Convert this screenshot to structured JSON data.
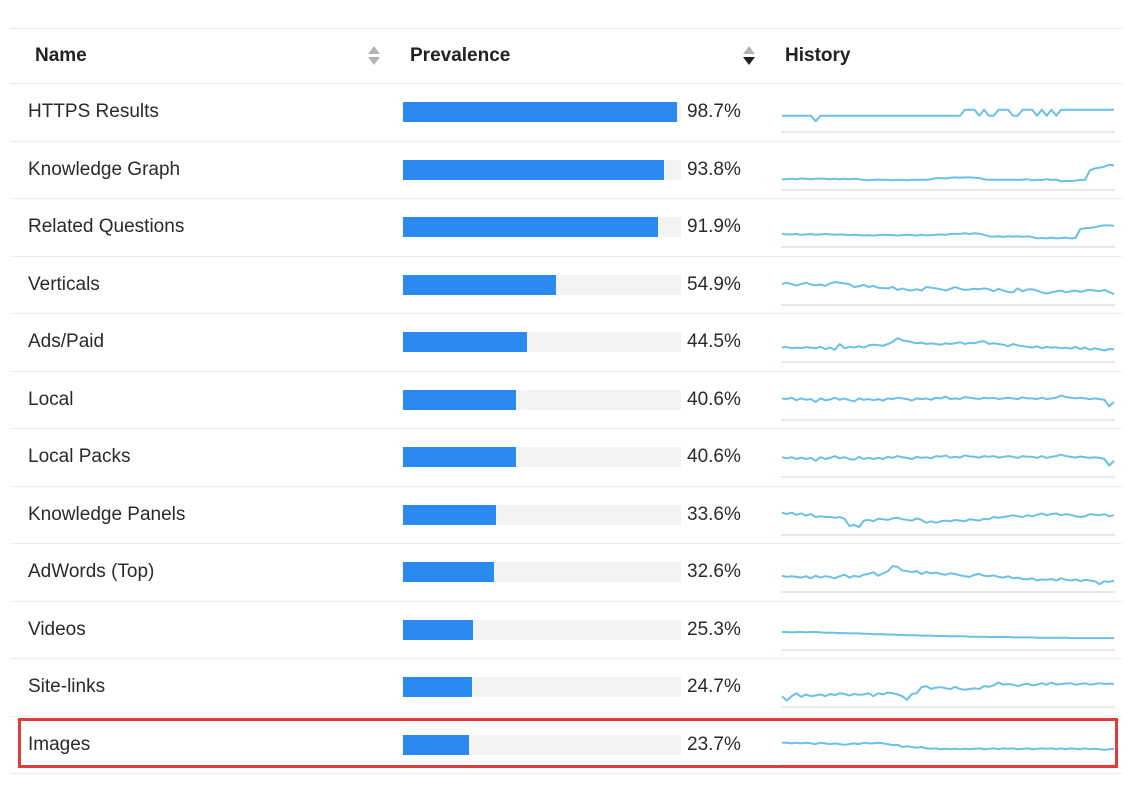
{
  "columns": {
    "name": "Name",
    "prevalence": "Prevalence",
    "history": "History"
  },
  "colors": {
    "bar": "#2a8af0",
    "track": "#f3f3f3",
    "spark": "#6cc0e8",
    "baseline": "#c9d4de",
    "highlight": "#e23b3b"
  },
  "rows": [
    {
      "name": "HTTPS Results",
      "value": 98.7,
      "label": "98.7%",
      "history": [
        0.45,
        0.45,
        0.45,
        0.45,
        0.45,
        0.45,
        0.45,
        0.3,
        0.45,
        0.45,
        0.45,
        0.45,
        0.45,
        0.45,
        0.45,
        0.45,
        0.45,
        0.45,
        0.45,
        0.45,
        0.45,
        0.45,
        0.45,
        0.45,
        0.45,
        0.45,
        0.45,
        0.45,
        0.45,
        0.45,
        0.45,
        0.45,
        0.45,
        0.45,
        0.45,
        0.45,
        0.45,
        0.45,
        0.62,
        0.62,
        0.62,
        0.45,
        0.62,
        0.45,
        0.45,
        0.62,
        0.62,
        0.62,
        0.45,
        0.45,
        0.62,
        0.62,
        0.62,
        0.45,
        0.62,
        0.45,
        0.62,
        0.45,
        0.62,
        0.62,
        0.62,
        0.62,
        0.62,
        0.62,
        0.62,
        0.62,
        0.62,
        0.62,
        0.62,
        0.62
      ]
    },
    {
      "name": "Knowledge Graph",
      "value": 93.8,
      "label": "93.8%",
      "history": [
        0.3,
        0.3,
        0.31,
        0.3,
        0.32,
        0.31,
        0.3,
        0.31,
        0.32,
        0.31,
        0.3,
        0.31,
        0.3,
        0.31,
        0.3,
        0.31,
        0.3,
        0.28,
        0.27,
        0.28,
        0.29,
        0.28,
        0.28,
        0.27,
        0.28,
        0.28,
        0.27,
        0.28,
        0.28,
        0.29,
        0.28,
        0.3,
        0.33,
        0.33,
        0.32,
        0.34,
        0.35,
        0.34,
        0.35,
        0.35,
        0.34,
        0.33,
        0.3,
        0.28,
        0.29,
        0.28,
        0.29,
        0.28,
        0.29,
        0.28,
        0.29,
        0.3,
        0.27,
        0.28,
        0.28,
        0.3,
        0.28,
        0.29,
        0.24,
        0.25,
        0.25,
        0.26,
        0.28,
        0.28,
        0.55,
        0.6,
        0.62,
        0.65,
        0.7,
        0.68
      ]
    },
    {
      "name": "Related Questions",
      "value": 91.9,
      "label": "91.9%",
      "history": [
        0.36,
        0.35,
        0.35,
        0.36,
        0.34,
        0.35,
        0.36,
        0.34,
        0.35,
        0.36,
        0.35,
        0.34,
        0.35,
        0.34,
        0.33,
        0.34,
        0.33,
        0.32,
        0.33,
        0.32,
        0.33,
        0.34,
        0.33,
        0.33,
        0.32,
        0.33,
        0.34,
        0.33,
        0.32,
        0.34,
        0.32,
        0.33,
        0.34,
        0.35,
        0.34,
        0.36,
        0.37,
        0.36,
        0.38,
        0.36,
        0.38,
        0.37,
        0.34,
        0.3,
        0.29,
        0.3,
        0.28,
        0.3,
        0.29,
        0.3,
        0.28,
        0.3,
        0.28,
        0.24,
        0.25,
        0.24,
        0.26,
        0.24,
        0.25,
        0.26,
        0.24,
        0.25,
        0.5,
        0.52,
        0.53,
        0.55,
        0.58,
        0.6,
        0.6,
        0.59
      ]
    },
    {
      "name": "Verticals",
      "value": 54.9,
      "label": "54.9%",
      "history": [
        0.58,
        0.62,
        0.58,
        0.54,
        0.58,
        0.62,
        0.57,
        0.55,
        0.57,
        0.53,
        0.6,
        0.64,
        0.62,
        0.6,
        0.58,
        0.5,
        0.52,
        0.56,
        0.5,
        0.53,
        0.48,
        0.47,
        0.46,
        0.5,
        0.42,
        0.46,
        0.42,
        0.4,
        0.44,
        0.4,
        0.5,
        0.48,
        0.46,
        0.44,
        0.4,
        0.45,
        0.5,
        0.45,
        0.42,
        0.43,
        0.45,
        0.44,
        0.46,
        0.44,
        0.38,
        0.45,
        0.4,
        0.36,
        0.35,
        0.46,
        0.38,
        0.43,
        0.44,
        0.4,
        0.35,
        0.32,
        0.35,
        0.38,
        0.4,
        0.35,
        0.38,
        0.4,
        0.36,
        0.4,
        0.42,
        0.4,
        0.38,
        0.42,
        0.36,
        0.3
      ]
    },
    {
      "name": "Ads/Paid",
      "value": 44.5,
      "label": "44.5%",
      "history": [
        0.4,
        0.42,
        0.38,
        0.4,
        0.39,
        0.41,
        0.4,
        0.38,
        0.42,
        0.36,
        0.4,
        0.34,
        0.5,
        0.38,
        0.42,
        0.4,
        0.44,
        0.4,
        0.46,
        0.48,
        0.47,
        0.45,
        0.5,
        0.56,
        0.66,
        0.6,
        0.58,
        0.55,
        0.52,
        0.54,
        0.5,
        0.52,
        0.5,
        0.48,
        0.52,
        0.5,
        0.52,
        0.55,
        0.5,
        0.53,
        0.52,
        0.56,
        0.58,
        0.5,
        0.52,
        0.5,
        0.48,
        0.44,
        0.5,
        0.46,
        0.44,
        0.42,
        0.4,
        0.44,
        0.38,
        0.42,
        0.4,
        0.41,
        0.38,
        0.4,
        0.37,
        0.42,
        0.36,
        0.4,
        0.34,
        0.38,
        0.35,
        0.32,
        0.36,
        0.35
      ]
    },
    {
      "name": "Local",
      "value": 40.6,
      "label": "40.6%",
      "history": [
        0.6,
        0.58,
        0.62,
        0.55,
        0.6,
        0.56,
        0.58,
        0.5,
        0.6,
        0.55,
        0.57,
        0.62,
        0.56,
        0.6,
        0.55,
        0.52,
        0.6,
        0.56,
        0.58,
        0.55,
        0.58,
        0.54,
        0.6,
        0.58,
        0.62,
        0.6,
        0.58,
        0.54,
        0.6,
        0.58,
        0.6,
        0.56,
        0.62,
        0.6,
        0.65,
        0.58,
        0.6,
        0.58,
        0.64,
        0.62,
        0.6,
        0.58,
        0.62,
        0.6,
        0.62,
        0.58,
        0.6,
        0.62,
        0.6,
        0.58,
        0.63,
        0.6,
        0.6,
        0.58,
        0.62,
        0.58,
        0.6,
        0.62,
        0.68,
        0.64,
        0.62,
        0.6,
        0.62,
        0.6,
        0.58,
        0.6,
        0.58,
        0.56,
        0.38,
        0.5
      ]
    },
    {
      "name": "Local Packs",
      "value": 40.6,
      "label": "40.6%",
      "history": [
        0.55,
        0.52,
        0.55,
        0.5,
        0.54,
        0.5,
        0.53,
        0.45,
        0.55,
        0.5,
        0.53,
        0.58,
        0.52,
        0.55,
        0.5,
        0.48,
        0.56,
        0.5,
        0.53,
        0.5,
        0.53,
        0.5,
        0.56,
        0.53,
        0.58,
        0.55,
        0.53,
        0.5,
        0.56,
        0.53,
        0.55,
        0.52,
        0.58,
        0.56,
        0.6,
        0.54,
        0.56,
        0.54,
        0.6,
        0.57,
        0.56,
        0.54,
        0.58,
        0.56,
        0.58,
        0.54,
        0.56,
        0.58,
        0.56,
        0.53,
        0.58,
        0.56,
        0.56,
        0.53,
        0.58,
        0.53,
        0.56,
        0.58,
        0.62,
        0.58,
        0.56,
        0.54,
        0.57,
        0.55,
        0.53,
        0.55,
        0.53,
        0.5,
        0.32,
        0.45
      ]
    },
    {
      "name": "Knowledge Panels",
      "value": 33.6,
      "label": "33.6%",
      "history": [
        0.62,
        0.58,
        0.62,
        0.56,
        0.6,
        0.54,
        0.58,
        0.5,
        0.52,
        0.5,
        0.5,
        0.48,
        0.5,
        0.45,
        0.25,
        0.28,
        0.22,
        0.4,
        0.42,
        0.38,
        0.45,
        0.44,
        0.42,
        0.46,
        0.48,
        0.44,
        0.42,
        0.4,
        0.46,
        0.42,
        0.34,
        0.38,
        0.34,
        0.38,
        0.4,
        0.38,
        0.42,
        0.4,
        0.38,
        0.44,
        0.42,
        0.4,
        0.45,
        0.44,
        0.5,
        0.48,
        0.5,
        0.52,
        0.55,
        0.52,
        0.5,
        0.55,
        0.52,
        0.56,
        0.6,
        0.55,
        0.58,
        0.6,
        0.55,
        0.58,
        0.56,
        0.52,
        0.5,
        0.52,
        0.58,
        0.56,
        0.55,
        0.58,
        0.52,
        0.55
      ]
    },
    {
      "name": "AdWords (Top)",
      "value": 32.6,
      "label": "32.6%",
      "history": [
        0.45,
        0.42,
        0.44,
        0.42,
        0.4,
        0.44,
        0.38,
        0.45,
        0.4,
        0.44,
        0.42,
        0.38,
        0.44,
        0.48,
        0.4,
        0.45,
        0.42,
        0.48,
        0.5,
        0.55,
        0.45,
        0.52,
        0.58,
        0.72,
        0.7,
        0.6,
        0.58,
        0.55,
        0.58,
        0.5,
        0.56,
        0.52,
        0.54,
        0.5,
        0.48,
        0.52,
        0.5,
        0.46,
        0.44,
        0.42,
        0.48,
        0.5,
        0.45,
        0.44,
        0.46,
        0.42,
        0.4,
        0.44,
        0.38,
        0.4,
        0.36,
        0.35,
        0.38,
        0.32,
        0.35,
        0.34,
        0.36,
        0.32,
        0.38,
        0.34,
        0.32,
        0.35,
        0.3,
        0.34,
        0.32,
        0.3,
        0.22,
        0.3,
        0.28,
        0.32
      ]
    },
    {
      "name": "Videos",
      "value": 25.3,
      "label": "25.3%",
      "history": [
        0.5,
        0.5,
        0.49,
        0.5,
        0.5,
        0.49,
        0.5,
        0.5,
        0.49,
        0.48,
        0.48,
        0.48,
        0.47,
        0.47,
        0.46,
        0.46,
        0.46,
        0.45,
        0.45,
        0.44,
        0.44,
        0.44,
        0.43,
        0.43,
        0.42,
        0.42,
        0.41,
        0.41,
        0.41,
        0.4,
        0.4,
        0.4,
        0.39,
        0.39,
        0.39,
        0.38,
        0.38,
        0.38,
        0.38,
        0.37,
        0.37,
        0.37,
        0.37,
        0.36,
        0.36,
        0.36,
        0.36,
        0.36,
        0.35,
        0.35,
        0.35,
        0.35,
        0.35,
        0.34,
        0.34,
        0.34,
        0.34,
        0.34,
        0.34,
        0.34,
        0.33,
        0.33,
        0.33,
        0.33,
        0.33,
        0.33,
        0.33,
        0.33,
        0.33,
        0.33
      ]
    },
    {
      "name": "Site-links",
      "value": 24.7,
      "label": "24.7%",
      "history": [
        0.3,
        0.18,
        0.3,
        0.38,
        0.28,
        0.35,
        0.3,
        0.32,
        0.35,
        0.3,
        0.36,
        0.33,
        0.38,
        0.36,
        0.32,
        0.36,
        0.34,
        0.35,
        0.38,
        0.3,
        0.38,
        0.35,
        0.4,
        0.38,
        0.35,
        0.3,
        0.2,
        0.36,
        0.38,
        0.55,
        0.58,
        0.5,
        0.54,
        0.55,
        0.52,
        0.5,
        0.56,
        0.5,
        0.48,
        0.5,
        0.52,
        0.5,
        0.58,
        0.56,
        0.6,
        0.68,
        0.62,
        0.64,
        0.62,
        0.58,
        0.62,
        0.65,
        0.6,
        0.62,
        0.66,
        0.62,
        0.68,
        0.62,
        0.64,
        0.65,
        0.66,
        0.62,
        0.64,
        0.66,
        0.62,
        0.64,
        0.66,
        0.64,
        0.65,
        0.64
      ]
    },
    {
      "name": "Images",
      "value": 23.7,
      "label": "23.7%",
      "history": [
        0.62,
        0.62,
        0.6,
        0.62,
        0.6,
        0.62,
        0.6,
        0.58,
        0.62,
        0.6,
        0.58,
        0.6,
        0.58,
        0.56,
        0.58,
        0.6,
        0.58,
        0.62,
        0.6,
        0.6,
        0.62,
        0.6,
        0.58,
        0.55,
        0.56,
        0.5,
        0.52,
        0.5,
        0.48,
        0.5,
        0.46,
        0.45,
        0.46,
        0.44,
        0.45,
        0.44,
        0.45,
        0.44,
        0.45,
        0.44,
        0.45,
        0.46,
        0.44,
        0.45,
        0.46,
        0.44,
        0.46,
        0.45,
        0.46,
        0.44,
        0.45,
        0.46,
        0.44,
        0.45,
        0.46,
        0.45,
        0.46,
        0.44,
        0.46,
        0.44,
        0.46,
        0.45,
        0.44,
        0.46,
        0.44,
        0.45,
        0.44,
        0.42,
        0.44,
        0.45
      ]
    }
  ],
  "highlighted_row": "Images"
}
